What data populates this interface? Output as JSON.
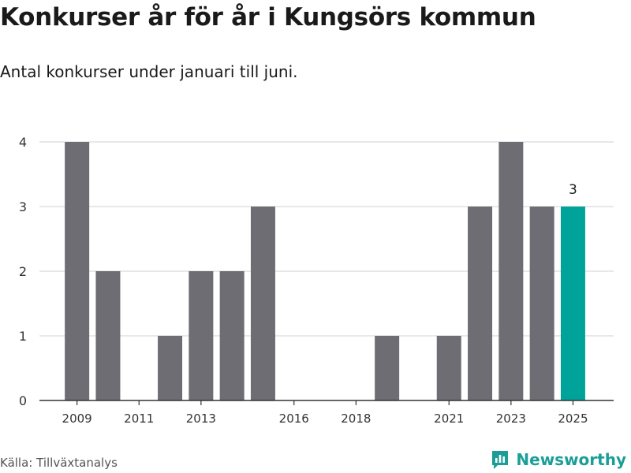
{
  "title": "Konkurser år för år i Kungsörs kommun",
  "subtitle": "Antal konkurser under januari till juni.",
  "source": "Källa: Tillväxtanalys",
  "brand": {
    "name": "Newsworthy",
    "icon": "newsworthy-logo-icon",
    "color": "#1a9e96"
  },
  "colors": {
    "bar": "#6d6d73",
    "highlight": "#00a39a",
    "grid": "#d9d9d9",
    "axis": "#333333"
  },
  "chart_data": {
    "type": "bar",
    "title": "Konkurser år för år i Kungsörs kommun",
    "subtitle": "Antal konkurser under januari till juni.",
    "xlabel": "",
    "ylabel": "",
    "categories": [
      2009,
      2010,
      2011,
      2012,
      2013,
      2014,
      2015,
      2016,
      2017,
      2018,
      2019,
      2020,
      2021,
      2022,
      2023,
      2024,
      2025
    ],
    "values": [
      4,
      2,
      0,
      1,
      2,
      2,
      3,
      0,
      0,
      0,
      1,
      0,
      1,
      3,
      4,
      3,
      3
    ],
    "x_tick_labels": [
      "2009",
      "2011",
      "2013",
      "2016",
      "2018",
      "2021",
      "2023",
      "2025"
    ],
    "y_ticks": [
      0,
      1,
      2,
      3,
      4
    ],
    "ylim": [
      0,
      4
    ],
    "highlight": {
      "category": 2025,
      "label": "3"
    },
    "grid": true,
    "legend": "none"
  }
}
